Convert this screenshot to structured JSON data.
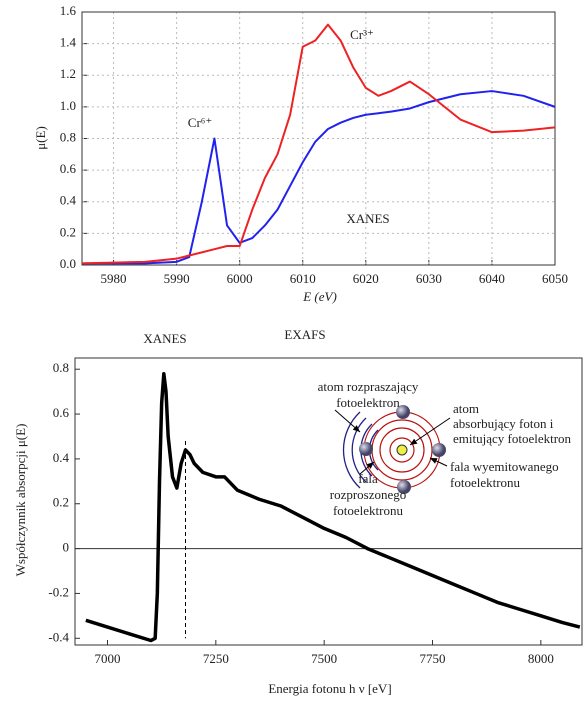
{
  "chart_data": [
    {
      "type": "line",
      "xlabel": "E (eV)",
      "ylabel": "μ(E)",
      "annotations": [
        "XANES"
      ],
      "x": [
        5975,
        5985,
        5990,
        5992,
        5994,
        5996,
        5998,
        6000,
        6002,
        6004,
        6006,
        6008,
        6010,
        6012,
        6014,
        6016,
        6018,
        6020,
        6022,
        6024,
        6027,
        6030,
        6035,
        6040,
        6045,
        6050
      ],
      "series": [
        {
          "name": "Cr⁶⁺",
          "color": "#2222ee",
          "values": [
            0.01,
            0.01,
            0.02,
            0.05,
            0.4,
            0.8,
            0.25,
            0.14,
            0.17,
            0.25,
            0.35,
            0.5,
            0.65,
            0.78,
            0.86,
            0.9,
            0.93,
            0.95,
            0.96,
            0.97,
            0.99,
            1.03,
            1.08,
            1.1,
            1.07,
            1.0
          ]
        },
        {
          "name": "Cr³⁺",
          "color": "#ee2222",
          "values": [
            0.01,
            0.02,
            0.04,
            0.06,
            0.08,
            0.1,
            0.12,
            0.12,
            0.35,
            0.55,
            0.7,
            0.95,
            1.38,
            1.42,
            1.52,
            1.42,
            1.25,
            1.12,
            1.07,
            1.1,
            1.16,
            1.08,
            0.92,
            0.84,
            0.85,
            0.87
          ]
        }
      ],
      "xlim": [
        5975,
        6050
      ],
      "ylim": [
        0,
        1.6
      ],
      "xticks": [
        5980,
        5990,
        6000,
        6010,
        6020,
        6030,
        6040,
        6050
      ],
      "yticks": [
        {
          "value": 0,
          "label": "0.0"
        },
        0.2,
        0.4,
        0.6,
        0.8,
        {
          "value": 1,
          "label": "1.0"
        },
        1.2,
        1.4,
        1.6
      ],
      "grid": true
    },
    {
      "type": "line",
      "xlabel": "Energia fotonu    h ν  [eV]",
      "ylabel": "Współczynnik absorpcji  μ(E)",
      "annotations": [
        [
          "XANES"
        ],
        [
          "EXAFS"
        ],
        [
          "atom rozpraszający",
          "fotoelektron"
        ],
        [
          "atom",
          "absorbujący foton i",
          "emitujący fotoelektron"
        ],
        [
          "fala wyemitowanego",
          "fotoelektronu"
        ],
        [
          "fala",
          "rozproszonego",
          "fotoelektronu"
        ]
      ],
      "x": [
        6950,
        7000,
        7050,
        7100,
        7110,
        7115,
        7120,
        7125,
        7130,
        7135,
        7140,
        7150,
        7160,
        7170,
        7180,
        7190,
        7200,
        7220,
        7250,
        7270,
        7290,
        7300,
        7350,
        7400,
        7450,
        7500,
        7550,
        7600,
        7650,
        7700,
        7750,
        7800,
        7850,
        7900,
        7950,
        8000,
        8050,
        8090
      ],
      "series": [
        {
          "color": "#000000",
          "values": [
            -0.32,
            -0.35,
            -0.38,
            -0.41,
            -0.4,
            -0.2,
            0.3,
            0.65,
            0.78,
            0.7,
            0.5,
            0.32,
            0.27,
            0.38,
            0.44,
            0.42,
            0.38,
            0.34,
            0.32,
            0.32,
            0.28,
            0.26,
            0.22,
            0.19,
            0.14,
            0.09,
            0.05,
            0.0,
            -0.04,
            -0.08,
            -0.12,
            -0.16,
            -0.2,
            -0.24,
            -0.27,
            -0.3,
            -0.33,
            -0.35
          ]
        }
      ],
      "vline": 7180,
      "xlim": [
        6925,
        8095
      ],
      "ylim": [
        -0.43,
        0.85
      ],
      "xticks": [
        7000,
        7250,
        7500,
        7750,
        8000
      ],
      "yticks": [
        -0.4,
        -0.2,
        0,
        0.2,
        0.4,
        0.6,
        0.8
      ],
      "grid": false,
      "zero_line": true
    }
  ]
}
